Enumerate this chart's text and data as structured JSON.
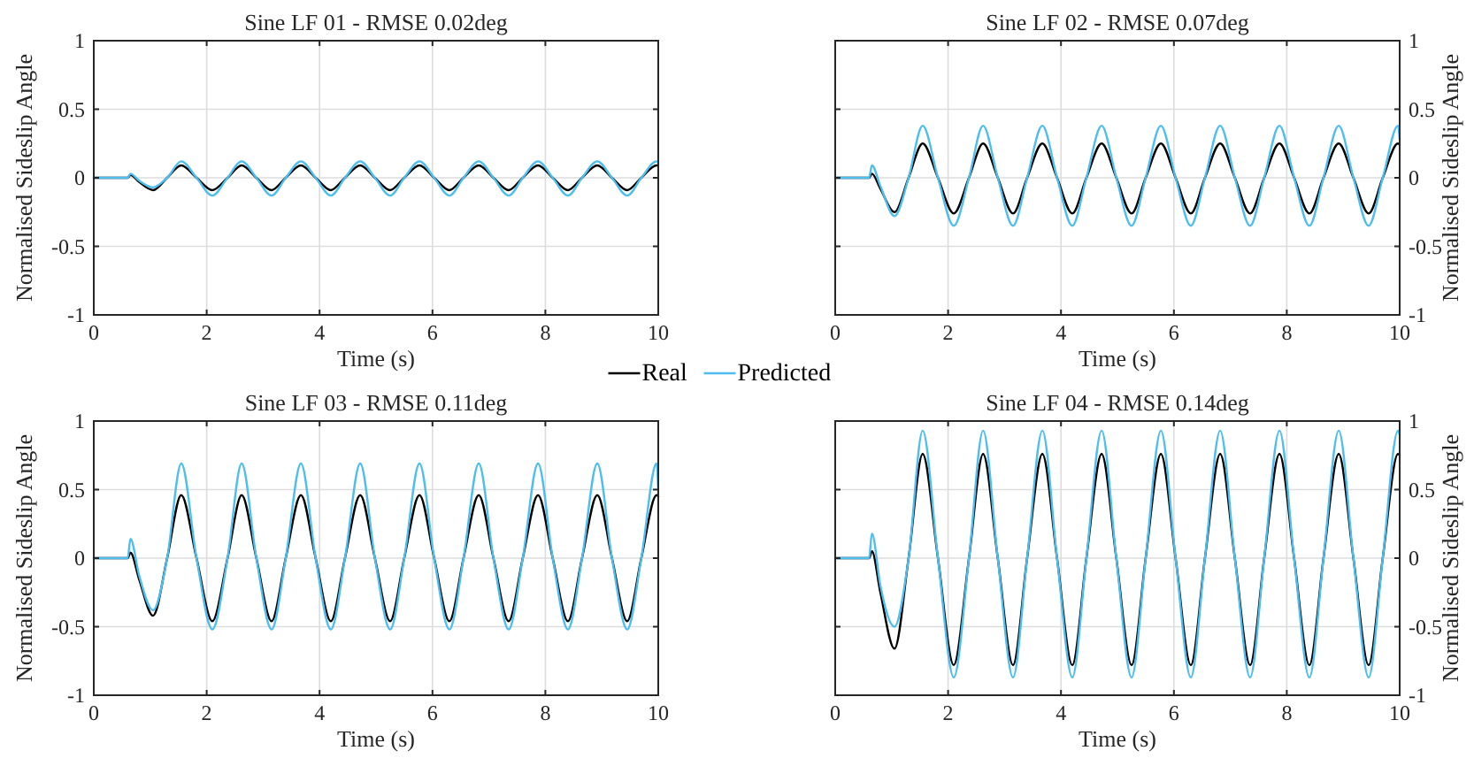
{
  "chart_data": [
    {
      "type": "line",
      "title": "Sine LF 01 - RMSE 0.02deg",
      "xlabel": "Time (s)",
      "ylabel": "Normalised Sideslip Angle",
      "xlim": [
        0,
        10
      ],
      "xticks": [
        0,
        2,
        4,
        6,
        8,
        10
      ],
      "ylim": [
        -1,
        1
      ],
      "yticks": [
        -1,
        -0.5,
        0,
        0.5,
        1
      ],
      "grid": true,
      "legend": "bottom",
      "x": [
        0,
        0.6,
        0.65,
        0.8,
        1.05,
        1.3,
        1.55,
        1.82,
        2.1,
        2.37,
        2.62,
        2.88,
        3.15,
        3.4,
        3.67,
        3.93,
        4.2,
        4.45,
        4.72,
        4.98,
        5.25,
        5.5,
        5.77,
        6.03,
        6.3,
        6.55,
        6.82,
        7.08,
        7.35,
        7.6,
        7.87,
        8.13,
        8.4,
        8.65,
        8.92,
        9.18,
        9.45,
        9.7,
        9.97,
        10
      ],
      "series": [
        {
          "name": "Real",
          "color": "#000000",
          "values": [
            0,
            0,
            0.02,
            -0.03,
            -0.09,
            0,
            0.09,
            0,
            -0.09,
            0,
            0.09,
            0,
            -0.09,
            0,
            0.09,
            0,
            -0.09,
            0,
            0.09,
            0,
            -0.09,
            0,
            0.09,
            0,
            -0.09,
            0,
            0.09,
            0,
            -0.09,
            0,
            0.09,
            0,
            -0.09,
            0,
            0.09,
            0,
            -0.09,
            0,
            0.09,
            0.09
          ]
        },
        {
          "name": "Predicted",
          "color": "#4dbeee",
          "values": [
            0,
            0,
            0.03,
            -0.02,
            -0.07,
            0,
            0.12,
            0,
            -0.13,
            0,
            0.12,
            0,
            -0.13,
            0,
            0.12,
            0,
            -0.13,
            0,
            0.12,
            0,
            -0.13,
            0,
            0.12,
            0,
            -0.13,
            0,
            0.12,
            0,
            -0.13,
            0,
            0.12,
            0,
            -0.13,
            0,
            0.12,
            0,
            -0.13,
            0,
            0.12,
            0.11
          ]
        }
      ]
    },
    {
      "type": "line",
      "title": "Sine LF 02 - RMSE 0.07deg",
      "xlabel": "Time (s)",
      "y2label": "Normalised Sideslip Angle",
      "xlim": [
        0,
        10
      ],
      "xticks": [
        0,
        2,
        4,
        6,
        8,
        10
      ],
      "y2lim": [
        -1,
        1
      ],
      "y2ticks": [
        -1,
        -0.5,
        0,
        0.5,
        1
      ],
      "grid": true,
      "x": [
        0,
        0.6,
        0.65,
        0.8,
        1.05,
        1.3,
        1.55,
        1.82,
        2.1,
        2.37,
        2.62,
        2.88,
        3.15,
        3.4,
        3.67,
        3.93,
        4.2,
        4.45,
        4.72,
        4.98,
        5.25,
        5.5,
        5.77,
        6.03,
        6.3,
        6.55,
        6.82,
        7.08,
        7.35,
        7.6,
        7.87,
        8.13,
        8.4,
        8.65,
        8.92,
        9.18,
        9.45,
        9.7,
        9.97,
        10
      ],
      "series": [
        {
          "color": "#000000",
          "axis": "y2",
          "values": [
            0,
            0,
            0.03,
            -0.08,
            -0.25,
            0,
            0.25,
            0,
            -0.26,
            0,
            0.25,
            0,
            -0.26,
            0,
            0.25,
            0,
            -0.26,
            0,
            0.25,
            0,
            -0.26,
            0,
            0.25,
            0,
            -0.26,
            0,
            0.25,
            0,
            -0.26,
            0,
            0.25,
            0,
            -0.26,
            0,
            0.25,
            0,
            -0.26,
            0,
            0.25,
            0.24
          ]
        },
        {
          "color": "#4dbeee",
          "axis": "y2",
          "values": [
            0,
            0,
            0.09,
            -0.06,
            -0.28,
            0,
            0.38,
            0,
            -0.35,
            0,
            0.38,
            0,
            -0.35,
            0,
            0.38,
            0,
            -0.35,
            0,
            0.38,
            0,
            -0.35,
            0,
            0.38,
            0,
            -0.35,
            0,
            0.38,
            0,
            -0.35,
            0,
            0.38,
            0,
            -0.35,
            0,
            0.38,
            0,
            -0.35,
            0,
            0.38,
            0.28
          ]
        }
      ]
    },
    {
      "type": "line",
      "title": "Sine LF 03 - RMSE 0.11deg",
      "xlabel": "Time (s)",
      "ylabel": "Normalised Sideslip Angle",
      "xlim": [
        0,
        10
      ],
      "xticks": [
        0,
        2,
        4,
        6,
        8,
        10
      ],
      "ylim": [
        -1,
        1
      ],
      "yticks": [
        -1,
        -0.5,
        0,
        0.5,
        1
      ],
      "grid": true,
      "x": [
        0,
        0.6,
        0.65,
        0.8,
        1.05,
        1.3,
        1.55,
        1.82,
        2.1,
        2.37,
        2.62,
        2.88,
        3.15,
        3.4,
        3.67,
        3.93,
        4.2,
        4.45,
        4.72,
        4.98,
        5.25,
        5.5,
        5.77,
        6.03,
        6.3,
        6.55,
        6.82,
        7.08,
        7.35,
        7.6,
        7.87,
        8.13,
        8.4,
        8.65,
        8.92,
        9.18,
        9.45,
        9.7,
        9.97,
        10
      ],
      "series": [
        {
          "color": "#000000",
          "values": [
            0,
            0,
            0.04,
            -0.15,
            -0.42,
            0,
            0.46,
            0,
            -0.46,
            0,
            0.46,
            0,
            -0.46,
            0,
            0.46,
            0,
            -0.46,
            0,
            0.46,
            0,
            -0.46,
            0,
            0.46,
            0,
            -0.46,
            0,
            0.46,
            0,
            -0.46,
            0,
            0.46,
            0,
            -0.46,
            0,
            0.46,
            0,
            -0.46,
            0,
            0.46,
            0.45
          ]
        },
        {
          "color": "#4dbeee",
          "values": [
            0,
            0,
            0.14,
            -0.12,
            -0.38,
            0,
            0.69,
            0,
            -0.52,
            0,
            0.69,
            0,
            -0.52,
            0,
            0.69,
            0,
            -0.52,
            0,
            0.69,
            0,
            -0.52,
            0,
            0.69,
            0,
            -0.52,
            0,
            0.69,
            0,
            -0.52,
            0,
            0.69,
            0,
            -0.52,
            0,
            0.69,
            0,
            -0.52,
            0,
            0.69,
            0.5
          ]
        }
      ]
    },
    {
      "type": "line",
      "title": "Sine LF 04 - RMSE 0.14deg",
      "xlabel": "Time (s)",
      "y2label": "Normalised Sideslip Angle",
      "xlim": [
        0,
        10
      ],
      "xticks": [
        0,
        2,
        4,
        6,
        8,
        10
      ],
      "y2lim": [
        -1,
        1
      ],
      "y2ticks": [
        -1,
        -0.5,
        0,
        0.5,
        1
      ],
      "grid": true,
      "x": [
        0,
        0.6,
        0.65,
        0.8,
        1.05,
        1.3,
        1.55,
        1.82,
        2.1,
        2.37,
        2.62,
        2.88,
        3.15,
        3.4,
        3.67,
        3.93,
        4.2,
        4.45,
        4.72,
        4.98,
        5.25,
        5.5,
        5.77,
        6.03,
        6.3,
        6.55,
        6.82,
        7.08,
        7.35,
        7.6,
        7.87,
        8.13,
        8.4,
        8.65,
        8.92,
        9.18,
        9.45,
        9.7,
        9.97,
        10
      ],
      "series": [
        {
          "color": "#000000",
          "axis": "y2",
          "values": [
            0,
            0,
            0.05,
            -0.25,
            -0.66,
            0,
            0.76,
            0,
            -0.78,
            0,
            0.76,
            0,
            -0.78,
            0,
            0.76,
            0,
            -0.78,
            0,
            0.76,
            0,
            -0.78,
            0,
            0.76,
            0,
            -0.78,
            0,
            0.76,
            0,
            -0.78,
            0,
            0.76,
            0,
            -0.78,
            0,
            0.76,
            0,
            -0.78,
            0,
            0.76,
            0.75
          ]
        },
        {
          "color": "#4dbeee",
          "axis": "y2",
          "values": [
            0,
            0,
            0.18,
            -0.2,
            -0.5,
            0,
            0.93,
            0,
            -0.87,
            0,
            0.93,
            0,
            -0.87,
            0,
            0.93,
            0,
            -0.87,
            0,
            0.93,
            0,
            -0.87,
            0,
            0.93,
            0,
            -0.87,
            0,
            0.93,
            0,
            -0.87,
            0,
            0.93,
            0,
            -0.87,
            0,
            0.93,
            0,
            -0.87,
            0,
            0.93,
            0.9
          ]
        }
      ]
    }
  ]
}
